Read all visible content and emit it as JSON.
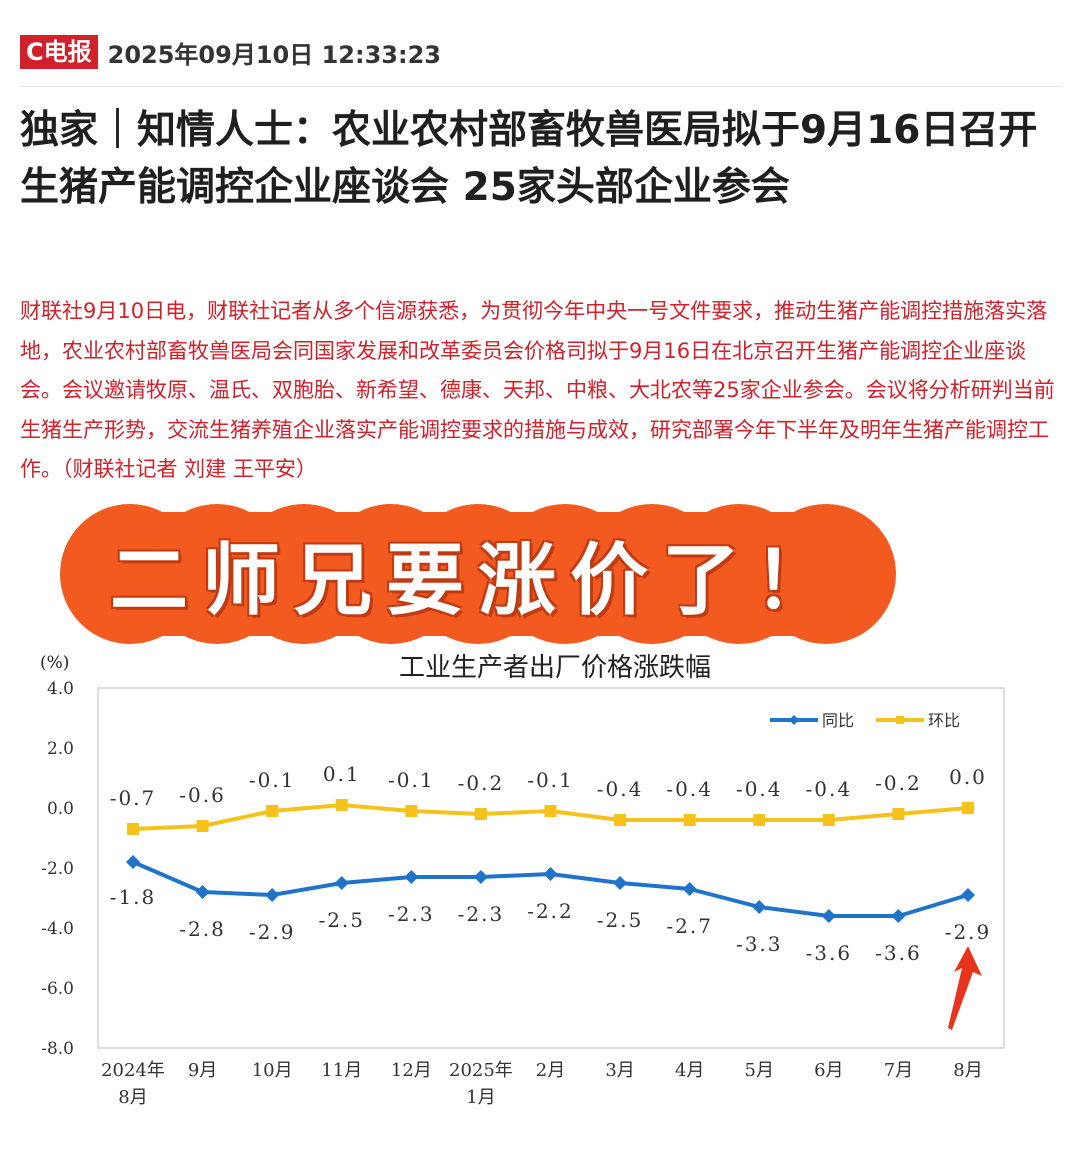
{
  "header": {
    "logo": "C电报",
    "datetime": "2025年09月10日 12:33:23"
  },
  "headline": "独家｜知情人士：农业农村部畜牧兽医局拟于9月16日召开生猪产能调控企业座谈会 25家头部企业参会",
  "body": "财联社9月10日电，财联社记者从多个信源获悉，为贯彻今年中央一号文件要求，推动生猪产能调控措施落实落地，农业农村部畜牧兽医局会同国家发展和改革委员会价格司拟于9月16日在北京召开生猪产能调控企业座谈会。会议邀请牧原、温氏、双胞胎、新希望、德康、天邦、中粮、大北农等25家企业参会。会议将分析研判当前生猪生产形势，交流生猪养殖企业落实产能调控要求的措施与成效，研究部署今年下半年及明年生猪产能调控工作。（财联社记者 刘建 王平安）",
  "banner": {
    "text": "二师兄要涨价了！",
    "color": "#f25a20"
  },
  "chart_data": {
    "type": "line",
    "title": "工业生产者出厂价格涨跌幅",
    "ylabel": "(%)",
    "ylim": [
      -8.0,
      4.0
    ],
    "yticks": [
      "4.0",
      "2.0",
      "0.0",
      "-2.0",
      "-4.0",
      "-6.0",
      "-8.0"
    ],
    "categories": [
      [
        "2024年",
        "8月"
      ],
      [
        "9月"
      ],
      [
        "10月"
      ],
      [
        "11月"
      ],
      [
        "12月"
      ],
      [
        "2025年",
        "1月"
      ],
      [
        "2月"
      ],
      [
        "3月"
      ],
      [
        "4月"
      ],
      [
        "5月"
      ],
      [
        "6月"
      ],
      [
        "7月"
      ],
      [
        "8月"
      ]
    ],
    "legend_position": "top-right",
    "grid": false,
    "series": [
      {
        "name": "同比",
        "color": "#1f74c9",
        "values": [
          -1.8,
          -2.8,
          -2.9,
          -2.5,
          -2.3,
          -2.3,
          -2.2,
          -2.5,
          -2.7,
          -3.3,
          -3.6,
          -3.6,
          -2.9
        ],
        "labels": [
          "-1.8",
          "-2.8",
          "-2.9",
          "-2.5",
          "-2.3",
          "-2.3",
          "-2.2",
          "-2.5",
          "-2.7",
          "-3.3",
          "-3.6",
          "-3.6",
          "-2.9"
        ]
      },
      {
        "name": "环比",
        "color": "#f5c21b",
        "values": [
          -0.7,
          -0.6,
          -0.1,
          0.1,
          -0.1,
          -0.2,
          -0.1,
          -0.4,
          -0.4,
          -0.4,
          -0.4,
          -0.2,
          0.0
        ],
        "labels": [
          "-0.7",
          "-0.6",
          "-0.1",
          "0.1",
          "-0.1",
          "-0.2",
          "-0.1",
          "-0.4",
          "-0.4",
          "-0.4",
          "-0.4",
          "-0.2",
          "0.0"
        ]
      }
    ],
    "annotation_arrow_color": "#e8341c"
  }
}
